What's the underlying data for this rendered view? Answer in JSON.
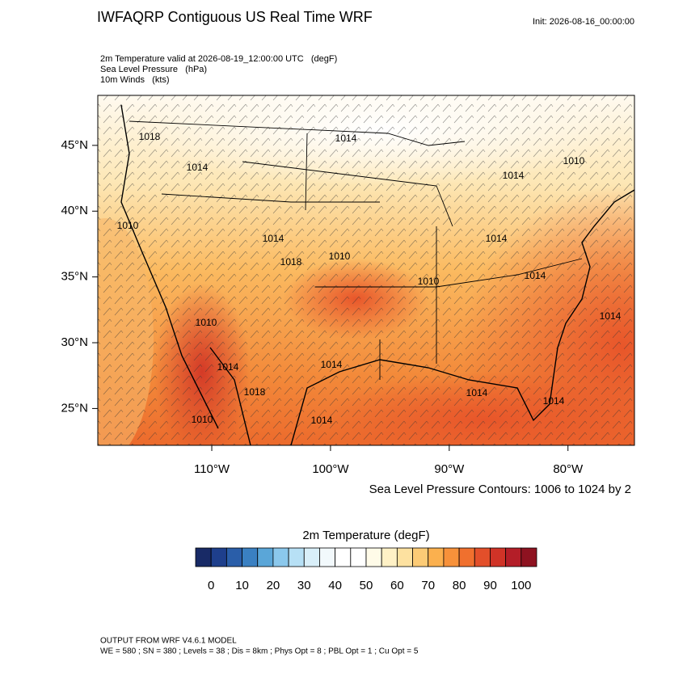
{
  "header": {
    "title": "IWFAQRP Contiguous US Real Time WRF",
    "init": "Init: 2026-08-16_00:00:00",
    "fields": [
      "2m Temperature valid at 2026-08-19_12:00:00 UTC   (degF)",
      "Sea Level Pressure   (hPa)",
      "10m Winds   (kts)"
    ]
  },
  "map": {
    "xlim": [
      -119.6,
      -74.4
    ],
    "ylim": [
      22.2,
      48.8
    ],
    "xticks": [
      {
        "value": -110,
        "label": "110°W"
      },
      {
        "value": -100,
        "label": "100°W"
      },
      {
        "value": -90,
        "label": "90°W"
      },
      {
        "value": -80,
        "label": "80°W"
      }
    ],
    "yticks": [
      {
        "value": 45,
        "label": "45°N"
      },
      {
        "value": 40,
        "label": "40°N"
      },
      {
        "value": 35,
        "label": "35°N"
      },
      {
        "value": 30,
        "label": "30°N"
      },
      {
        "value": 25,
        "label": "25°N"
      }
    ],
    "pressure_labels": [
      1018,
      1014,
      1014,
      1010,
      1014,
      1010,
      1014,
      1018,
      1010,
      1010,
      1014,
      1014,
      1014,
      1010,
      1014,
      1014,
      1018,
      1014,
      1014,
      1010,
      1014
    ],
    "contour_note": "Sea Level Pressure Contours: 1006 to 1024 by 2"
  },
  "colorbar": {
    "title": "2m Temperature  (degF)",
    "clim": [
      -5,
      105
    ],
    "ticks": [
      0,
      10,
      20,
      30,
      40,
      50,
      60,
      70,
      80,
      90,
      100
    ],
    "colors": [
      "#182a66",
      "#1e3f8c",
      "#2a5ea9",
      "#3a80c2",
      "#5aa6d8",
      "#8bc8ec",
      "#b7e0f5",
      "#d9eff9",
      "#f2f9fc",
      "#ffffff",
      "#ffffff",
      "#fffbe8",
      "#fff1c6",
      "#fde1a0",
      "#fccb76",
      "#fbb04e",
      "#f7913a",
      "#f0702e",
      "#e34f2a",
      "#d03327",
      "#b41e28",
      "#8e1220"
    ]
  },
  "footer": {
    "model": "OUTPUT FROM WRF V4.6.1 MODEL",
    "settings": "WE = 580 ; SN = 380 ; Levels = 38 ; Dis = 8km ; Phys Opt = 8 ; PBL Opt = 1 ; Cu Opt = 5"
  }
}
